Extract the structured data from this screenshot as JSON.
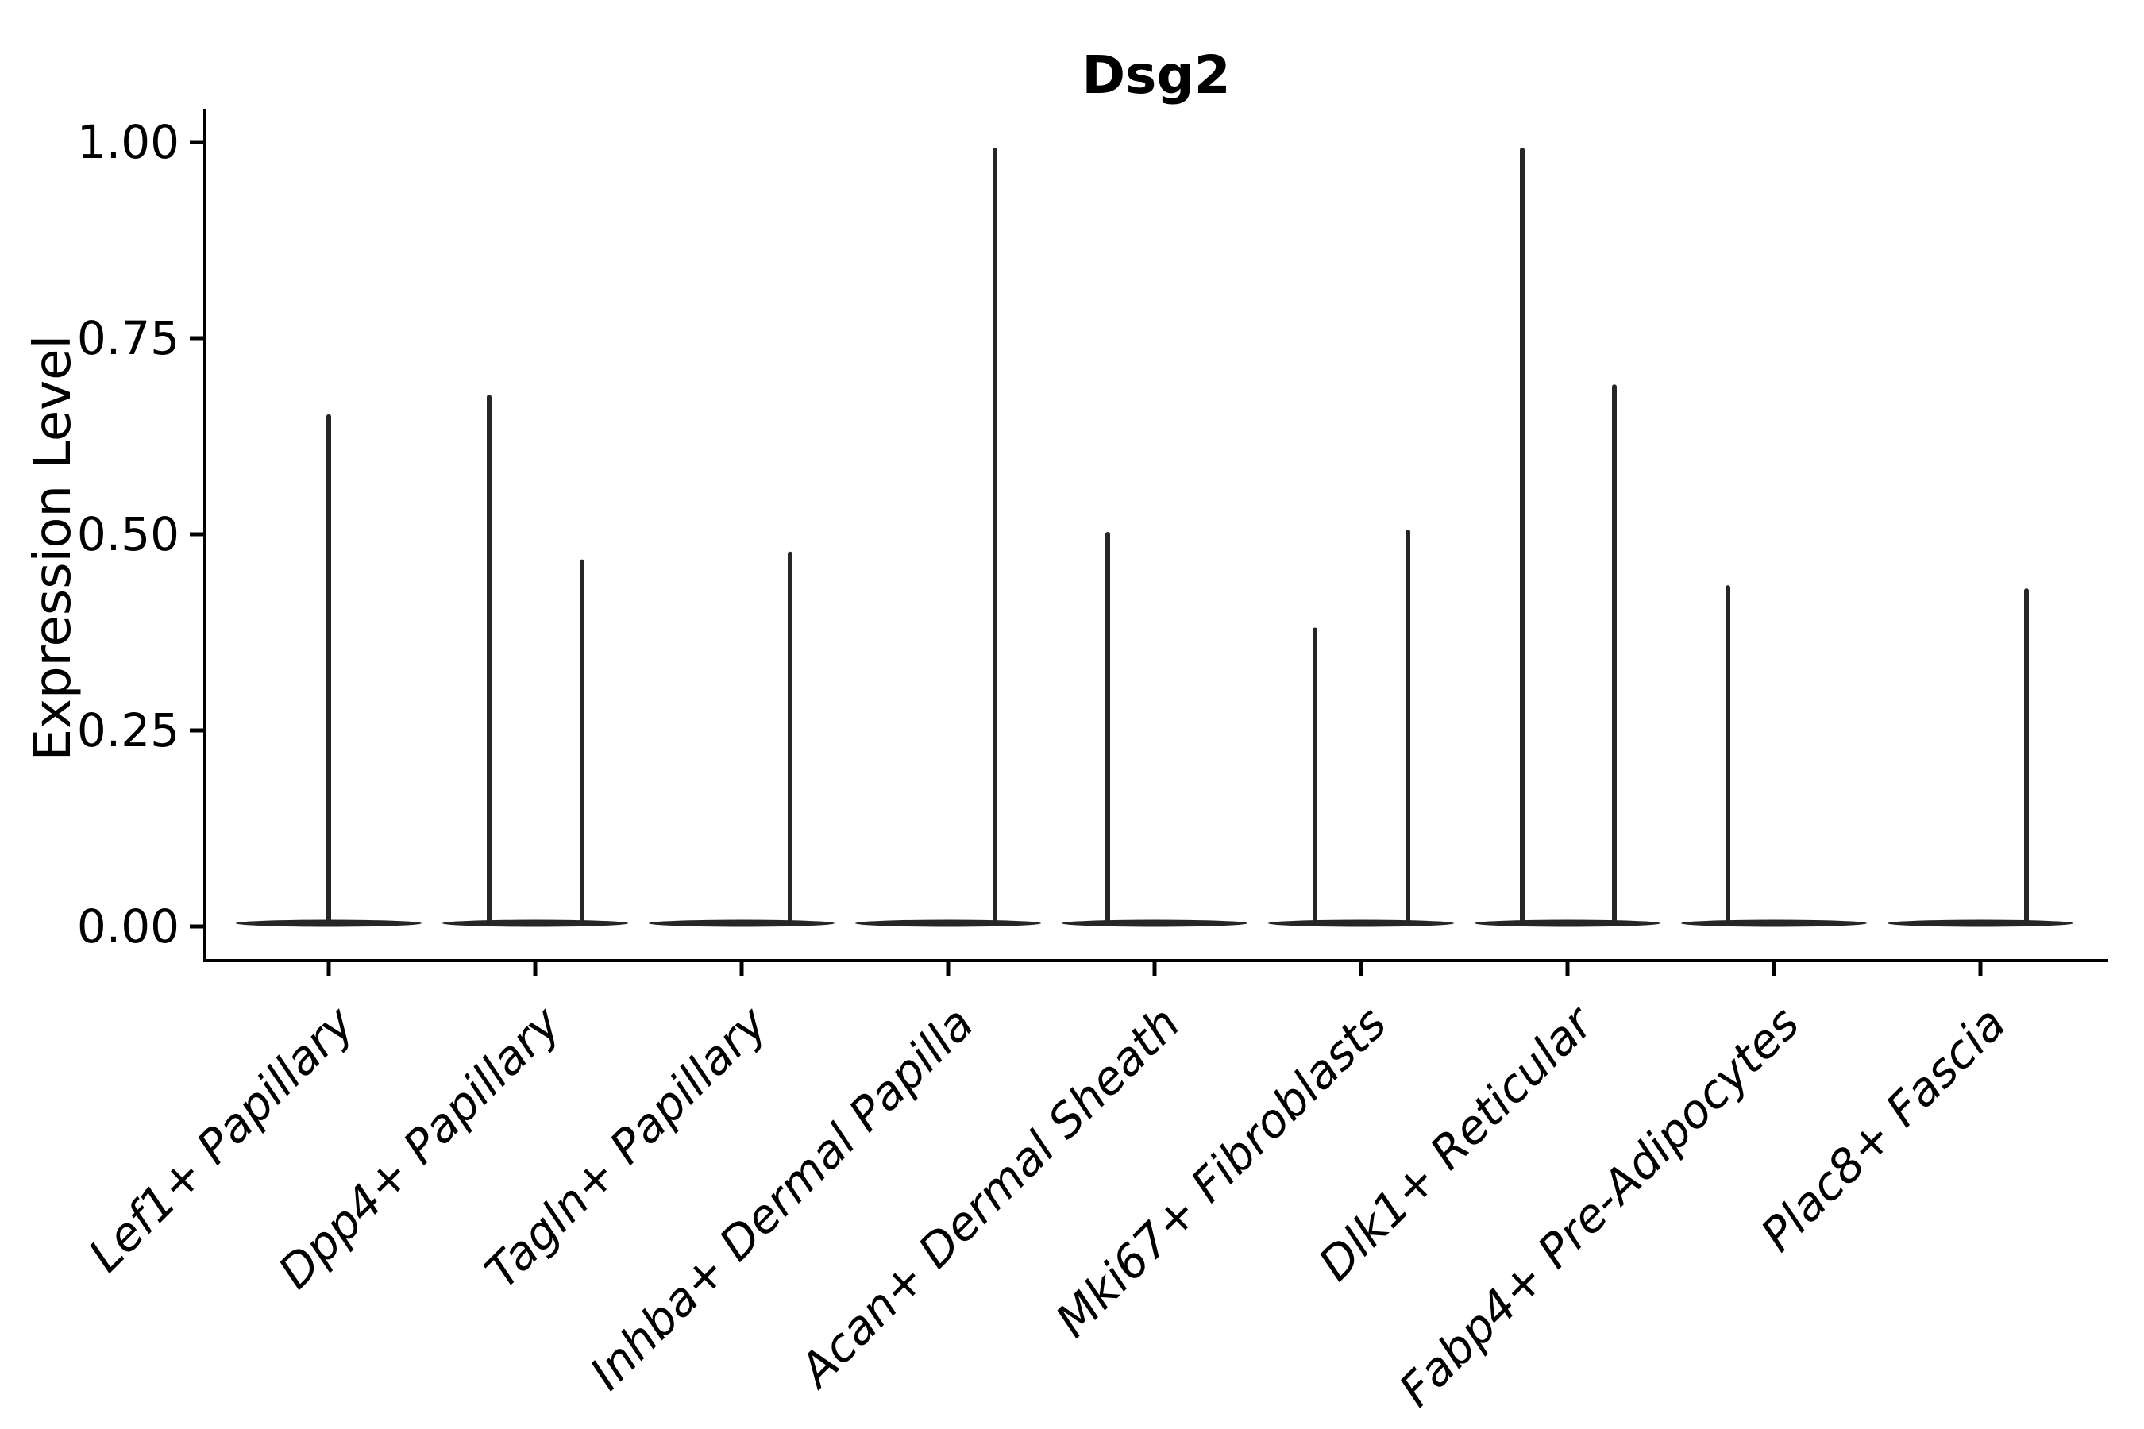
{
  "chart_data": {
    "type": "violin",
    "title": "Dsg2",
    "ylabel": "Expression Level",
    "xlabel": "",
    "ylim": [
      0,
      1.05
    ],
    "grid": false,
    "legend": "none",
    "axis_color": "#000000",
    "violin_color": "#262626",
    "yticks": [
      {
        "value": 0.0,
        "label": "0.00"
      },
      {
        "value": 0.25,
        "label": "0.25"
      },
      {
        "value": 0.5,
        "label": "0.50"
      },
      {
        "value": 0.75,
        "label": "0.75"
      },
      {
        "value": 1.0,
        "label": "1.00"
      }
    ],
    "categories": [
      {
        "label": "Lef1+ Papillary",
        "baseline_value": 0,
        "spikes": [
          {
            "offset": 0,
            "value": 0.65
          }
        ]
      },
      {
        "label": "Dpp4+ Papillary",
        "baseline_value": 0,
        "spikes": [
          {
            "offset": -58,
            "value": 0.675
          },
          {
            "offset": 59,
            "value": 0.465
          }
        ]
      },
      {
        "label": "Tagln+ Papillary",
        "baseline_value": 0,
        "spikes": [
          {
            "offset": 61,
            "value": 0.475
          }
        ]
      },
      {
        "label": "Inhba+ Dermal Papilla",
        "baseline_value": 0,
        "spikes": [
          {
            "offset": 59,
            "value": 0.99
          }
        ]
      },
      {
        "label": "Acan+ Dermal Sheath",
        "baseline_value": 0,
        "spikes": [
          {
            "offset": -59,
            "value": 0.5
          }
        ]
      },
      {
        "label": "Mki67+ Fibroblasts",
        "baseline_value": 0,
        "spikes": [
          {
            "offset": -58,
            "value": 0.378
          },
          {
            "offset": 59,
            "value": 0.503
          }
        ]
      },
      {
        "label": "Dlk1+ Reticular",
        "baseline_value": 0,
        "spikes": [
          {
            "offset": -57,
            "value": 0.99
          },
          {
            "offset": 59,
            "value": 0.688
          }
        ]
      },
      {
        "label": "Fabp4+ Pre-Adipocytes",
        "baseline_value": 0,
        "spikes": [
          {
            "offset": -58,
            "value": 0.432
          }
        ]
      },
      {
        "label": "Plac8+ Fascia",
        "baseline_value": 0,
        "spikes": [
          {
            "offset": 58,
            "value": 0.428
          }
        ]
      }
    ]
  }
}
